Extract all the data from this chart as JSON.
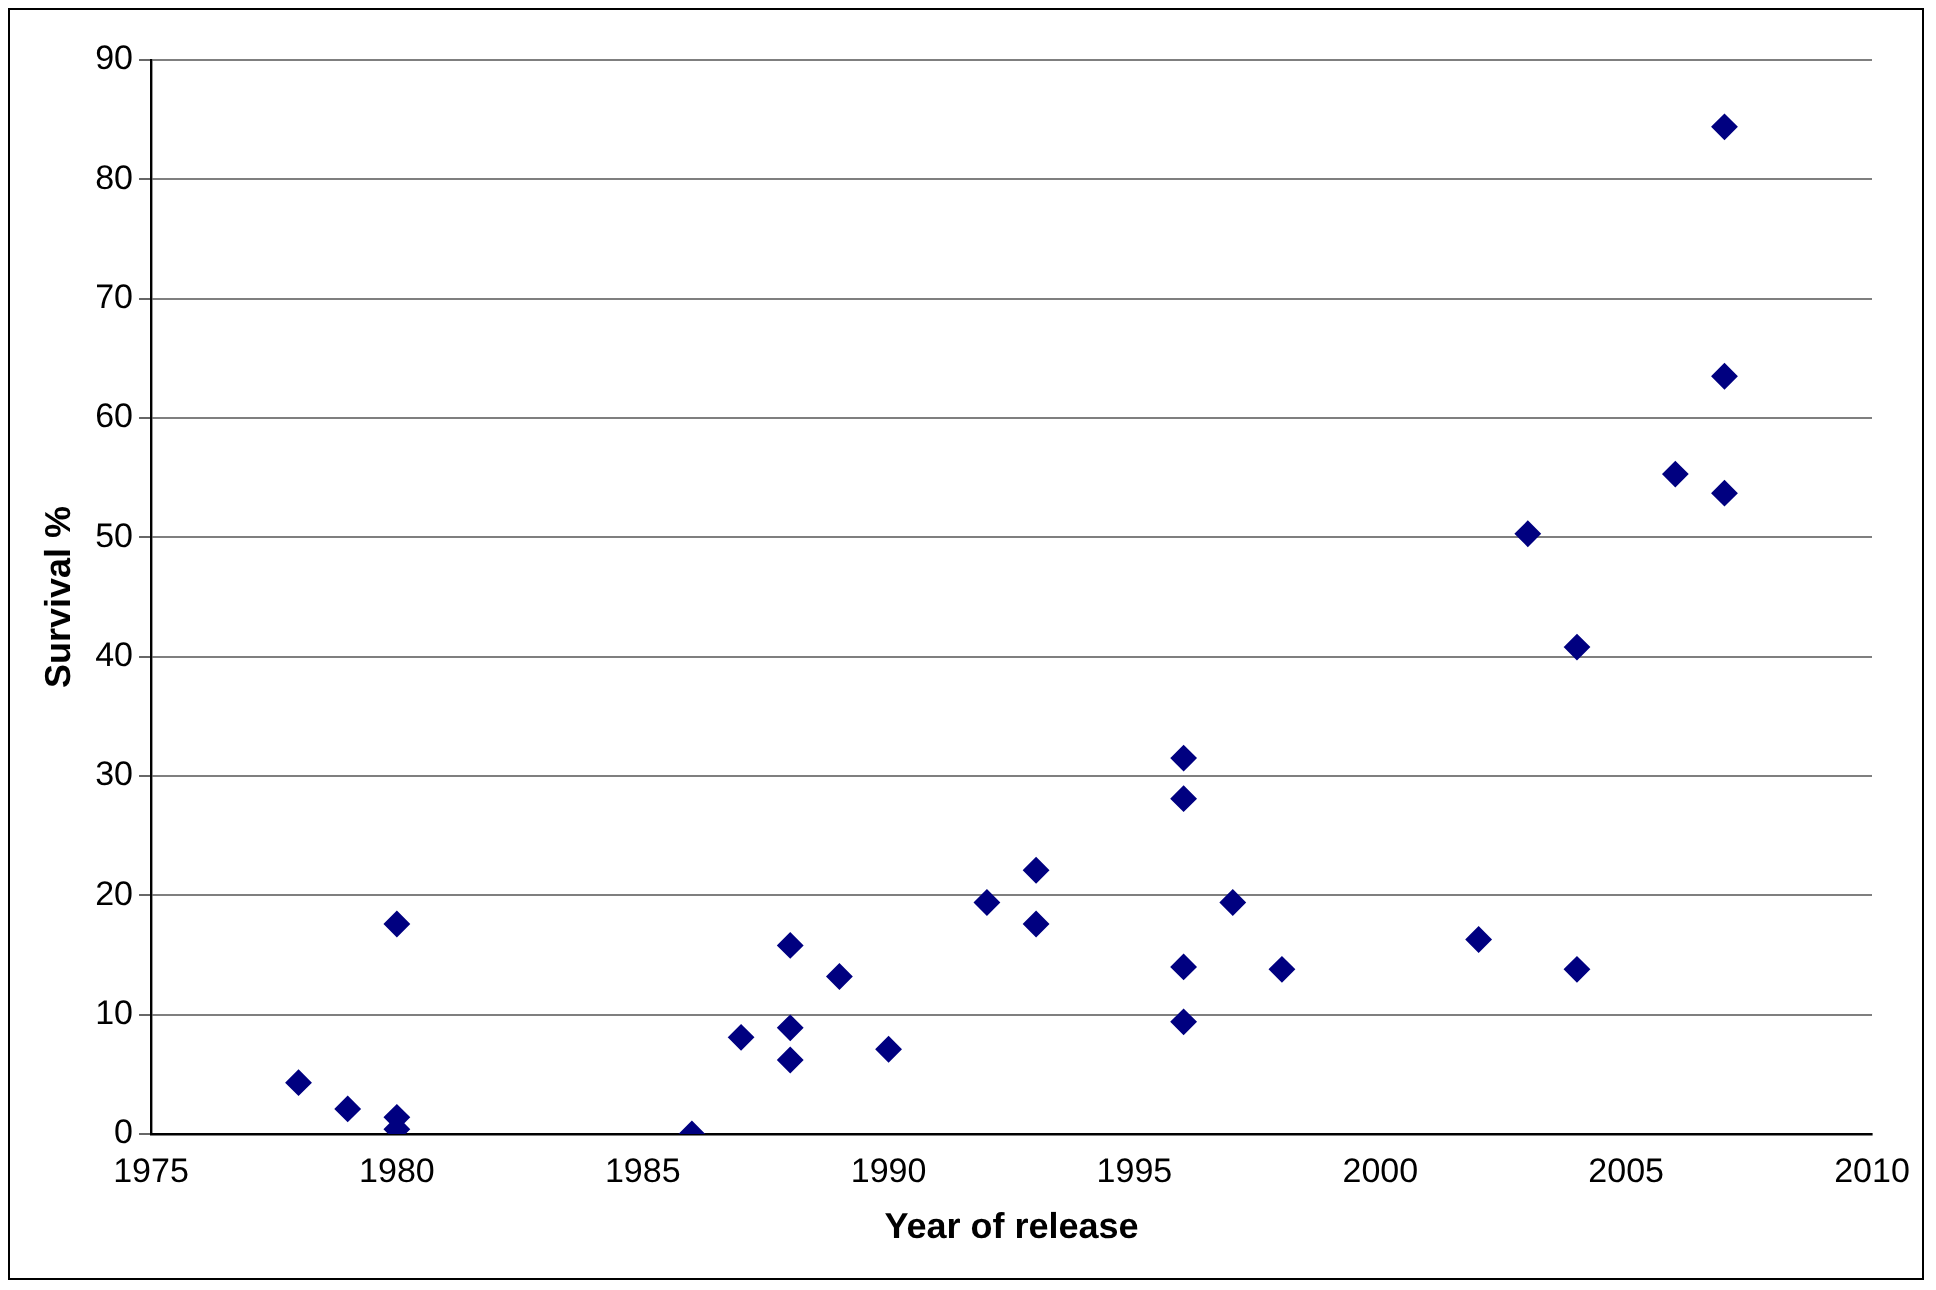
{
  "chart_data": {
    "type": "scatter",
    "xlabel": "Year of release",
    "ylabel": "Survival %",
    "x": [
      1978,
      1979,
      1980,
      1980,
      1980,
      1986,
      1987,
      1988,
      1988,
      1988,
      1989,
      1990,
      1992,
      1993,
      1993,
      1996,
      1996,
      1996,
      1996,
      1997,
      1998,
      2002,
      2003,
      2004,
      2004,
      2006,
      2007,
      2007,
      2007
    ],
    "values": [
      4.3,
      2.1,
      17.6,
      1.4,
      0.4,
      0,
      8.1,
      15.8,
      8.9,
      6.2,
      13.2,
      7.1,
      19.4,
      22.1,
      17.6,
      31.5,
      28.1,
      14.0,
      9.4,
      19.4,
      13.8,
      16.3,
      50.3,
      40.8,
      13.8,
      55.3,
      84.4,
      63.5,
      53.7
    ],
    "color": "#000080",
    "marker": "diamond",
    "xlim": [
      1975,
      2010
    ],
    "xticks": [
      1975,
      1980,
      1985,
      1990,
      1995,
      2000,
      2005,
      2010
    ],
    "ylim": [
      0,
      90
    ],
    "yticks": [
      0,
      10,
      20,
      30,
      40,
      50,
      60,
      70,
      80,
      90
    ],
    "grid": "y",
    "legend": false
  }
}
